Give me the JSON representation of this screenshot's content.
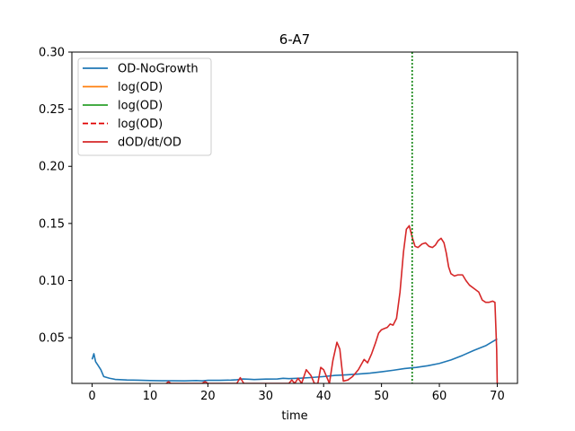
{
  "chart_data": {
    "type": "line",
    "title": "6-A7",
    "xlabel": "time",
    "ylabel": "",
    "xlim": [
      -3.5,
      73.5
    ],
    "ylim": [
      0.01,
      0.3
    ],
    "x_ticks": [
      0,
      10,
      20,
      30,
      40,
      50,
      60,
      70
    ],
    "x_tick_labels": [
      "0",
      "10",
      "20",
      "30",
      "40",
      "50",
      "60",
      "70"
    ],
    "y_ticks": [
      0.05,
      0.1,
      0.15,
      0.2,
      0.25,
      0.3
    ],
    "y_tick_labels": [
      "0.05",
      "0.10",
      "0.15",
      "0.20",
      "0.25",
      "0.30"
    ],
    "grid": false,
    "legend_position": "top-left",
    "series": [
      {
        "name": "OD-NoGrowth",
        "color": "#1f77b4",
        "style": "solid",
        "x": [
          0,
          0.3,
          0.6,
          1,
          1.5,
          2,
          3,
          4,
          6,
          8,
          10,
          12,
          14,
          16,
          18,
          19,
          20,
          22,
          24,
          25,
          26,
          27,
          28,
          30,
          32,
          33,
          34,
          36,
          38,
          40,
          42,
          44,
          46,
          48,
          50,
          52,
          54,
          56,
          58,
          60,
          62,
          64,
          66,
          68,
          70
        ],
        "y": [
          0.031,
          0.036,
          0.029,
          0.026,
          0.022,
          0.016,
          0.0145,
          0.0135,
          0.013,
          0.0128,
          0.0125,
          0.0123,
          0.0123,
          0.0122,
          0.0125,
          0.0122,
          0.0127,
          0.0127,
          0.0129,
          0.0132,
          0.0139,
          0.0137,
          0.0134,
          0.0138,
          0.0139,
          0.0145,
          0.0142,
          0.0146,
          0.0152,
          0.016,
          0.017,
          0.0175,
          0.0182,
          0.019,
          0.0202,
          0.0215,
          0.023,
          0.024,
          0.0255,
          0.0275,
          0.0305,
          0.0345,
          0.039,
          0.043,
          0.049
        ]
      },
      {
        "name": "log(OD)",
        "color": "#ff7f0e",
        "style": "solid",
        "x": [],
        "y": []
      },
      {
        "name": "log(OD)",
        "color": "#2ca02c",
        "style": "solid",
        "x": [],
        "y": []
      },
      {
        "name": "log(OD)",
        "color": "#e00000",
        "style": "dashed",
        "x": [],
        "y": []
      },
      {
        "name": "dOD/dt/OD",
        "color": "#d62728",
        "style": "solid",
        "x": [
          12.8,
          13.2,
          13.6,
          19.0,
          19.5,
          20.0,
          25.0,
          25.6,
          26.2,
          34.0,
          34.5,
          35.0,
          35.6,
          36.2,
          37.0,
          37.8,
          38.4,
          39.0,
          39.5,
          40.0,
          41.0,
          41.6,
          42.3,
          42.8,
          43.4,
          44.2,
          45.0,
          46.0,
          47.0,
          47.6,
          48.3,
          49.0,
          49.5,
          50.0,
          50.5,
          51.0,
          51.5,
          52.0,
          52.6,
          53.2,
          53.8,
          54.3,
          54.8,
          55.3,
          55.8,
          56.3,
          57.0,
          57.6,
          58.2,
          58.8,
          59.3,
          59.8,
          60.3,
          60.8,
          61.2,
          61.6,
          62.0,
          62.6,
          63.2,
          64.0,
          64.6,
          65.2,
          66.0,
          66.8,
          67.4,
          68.0,
          68.6,
          69.2,
          69.6,
          69.9,
          70.0
        ],
        "y": [
          0.01,
          0.0115,
          0.01,
          0.01,
          0.0115,
          0.01,
          0.01,
          0.015,
          0.01,
          0.01,
          0.013,
          0.01,
          0.0145,
          0.01,
          0.022,
          0.017,
          0.01,
          0.01,
          0.024,
          0.022,
          0.01,
          0.03,
          0.046,
          0.04,
          0.012,
          0.013,
          0.016,
          0.022,
          0.031,
          0.028,
          0.036,
          0.046,
          0.054,
          0.057,
          0.058,
          0.059,
          0.062,
          0.061,
          0.067,
          0.09,
          0.125,
          0.145,
          0.148,
          0.138,
          0.13,
          0.129,
          0.132,
          0.133,
          0.13,
          0.129,
          0.131,
          0.135,
          0.137,
          0.133,
          0.124,
          0.112,
          0.106,
          0.104,
          0.105,
          0.105,
          0.1,
          0.096,
          0.093,
          0.09,
          0.083,
          0.081,
          0.081,
          0.082,
          0.081,
          0.04,
          0.01
        ]
      }
    ],
    "vertical_lines": [
      {
        "x": 55.3,
        "color": "#008000",
        "style": "dotted"
      }
    ]
  }
}
